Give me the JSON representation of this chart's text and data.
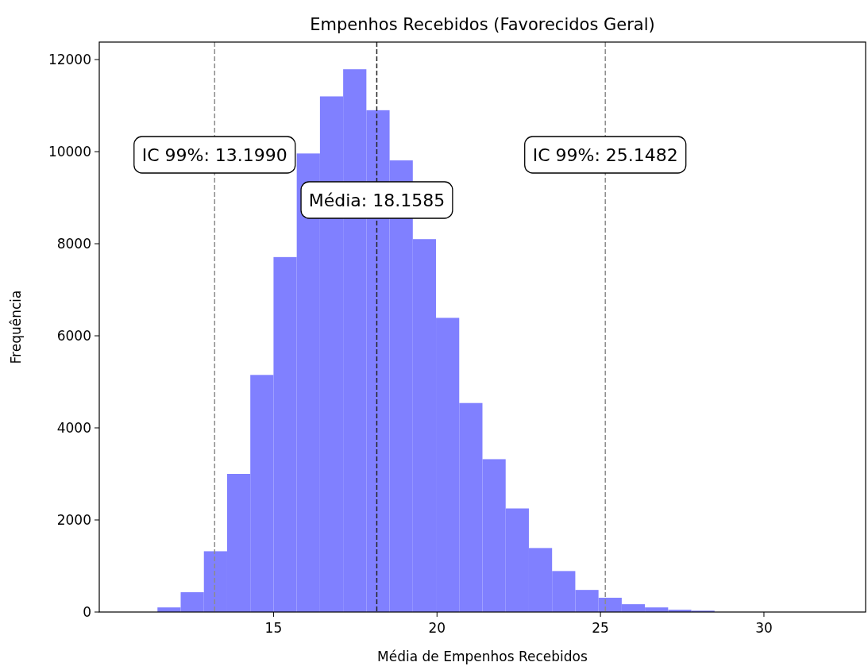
{
  "chart_data": {
    "type": "histogram",
    "title": "Empenhos Recebidos (Favorecidos Geral)",
    "xlabel": "Média de Empenhos Recebidos",
    "ylabel": "Frequência",
    "bins": [
      10.74,
      11.45,
      12.16,
      12.87,
      13.58,
      14.29,
      15.0,
      15.71,
      16.42,
      17.13,
      17.84,
      18.55,
      19.26,
      19.97,
      20.68,
      21.39,
      22.1,
      22.81,
      23.52,
      24.23,
      24.94,
      25.65,
      26.36,
      27.07,
      27.78,
      28.49,
      29.2,
      29.91,
      30.62,
      31.33,
      32.04
    ],
    "values": [
      0,
      100,
      430,
      1320,
      3000,
      5150,
      7710,
      9960,
      11200,
      11790,
      10900,
      9810,
      8100,
      6390,
      4540,
      3320,
      2250,
      1390,
      890,
      480,
      310,
      170,
      100,
      50,
      30,
      0,
      0,
      0,
      0,
      0
    ],
    "color": "#8080ff",
    "xlim": [
      9.67,
      33.11
    ],
    "ylim": [
      0,
      12380
    ],
    "xticks": [
      15,
      20,
      25,
      30
    ],
    "yticks": [
      0,
      2000,
      4000,
      6000,
      8000,
      10000,
      12000
    ],
    "grid": false,
    "ref_lines": [
      {
        "axis": "x",
        "value": 18.1585,
        "label": "Média: 18.1585",
        "color": "#222222",
        "line_style": "dashed"
      },
      {
        "axis": "x",
        "value": 13.199,
        "label": "IC 99%: 13.1990",
        "color": "#8c8c8c",
        "line_style": "dashed"
      },
      {
        "axis": "x",
        "value": 25.1482,
        "label": "IC 99%: 25.1482",
        "color": "#8c8c8c",
        "line_style": "dashed"
      }
    ]
  }
}
